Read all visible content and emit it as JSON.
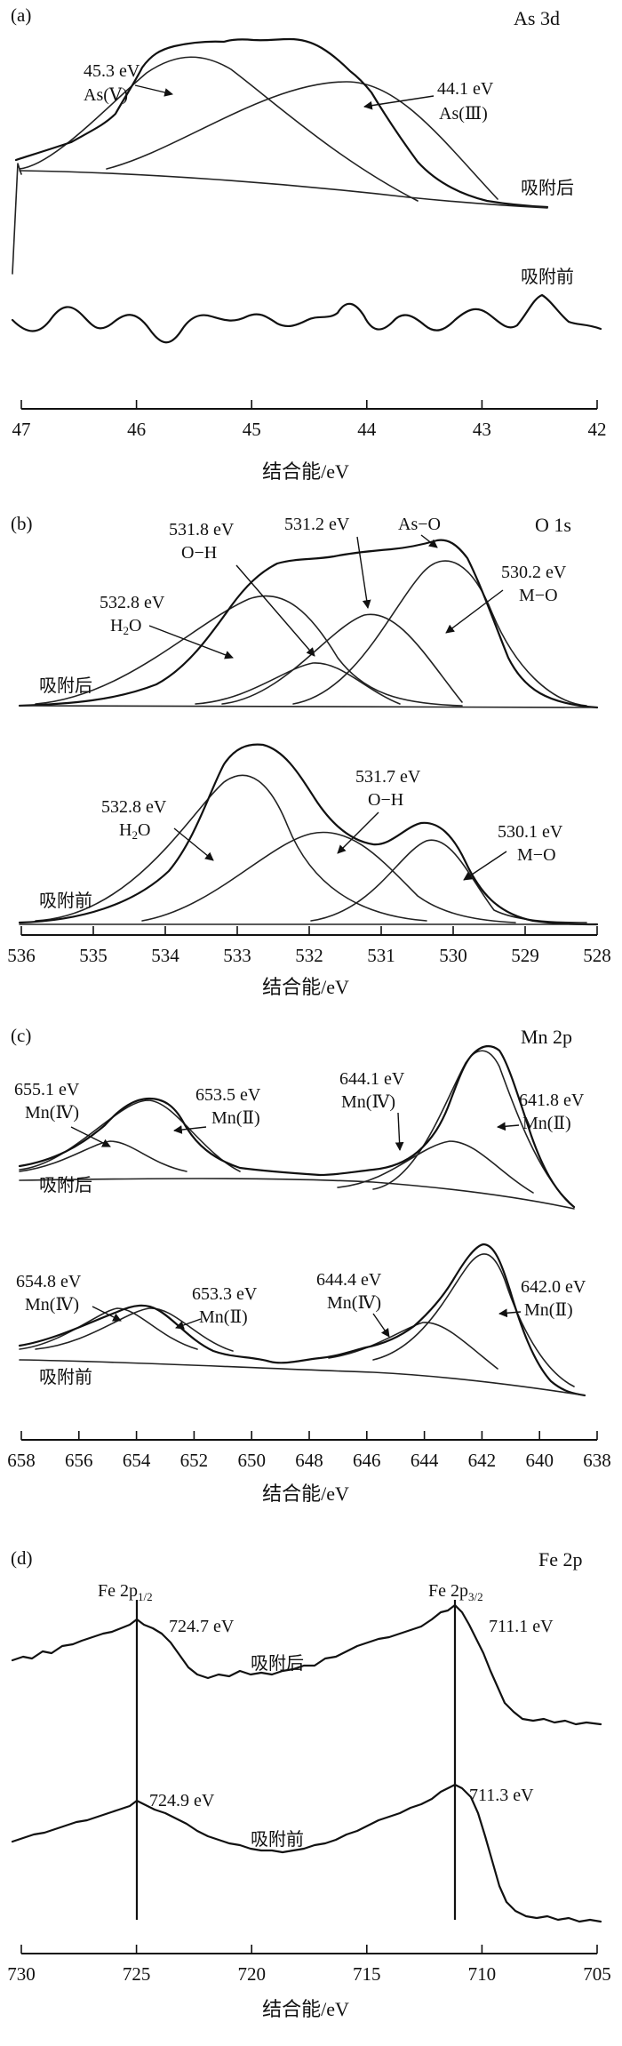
{
  "colors": {
    "ink": "#111111",
    "background": "#ffffff"
  },
  "chart_data": [
    {
      "type": "line",
      "panel": "(a)",
      "title": "As 3d",
      "xlabel": "结合能/eV",
      "ylabel": "",
      "xlim": [
        47,
        42
      ],
      "x_reversed": true,
      "ticks": [
        "47",
        "46",
        "45",
        "44",
        "43",
        "42"
      ],
      "curve_labels": [
        "吸附后",
        "吸附前"
      ],
      "peaks": [
        {
          "energy": "45.3 eV",
          "species": "As(Ⅴ)",
          "x": 45.3
        },
        {
          "energy": "44.1 eV",
          "species": "As(Ⅲ)",
          "x": 44.1
        }
      ],
      "series": [
        {
          "name": "吸附后",
          "x": [
            47,
            46.5,
            46,
            45.5,
            45,
            44.5,
            44,
            43.5,
            43,
            42.5,
            42
          ],
          "values": [
            0.35,
            0.55,
            0.78,
            0.94,
            1.0,
            0.97,
            0.9,
            0.7,
            0.38,
            0.14,
            0.08
          ]
        },
        {
          "name": "吸附前",
          "x": [
            47,
            46.5,
            46,
            45.5,
            45,
            44.5,
            44,
            43.5,
            43,
            42.5,
            42
          ],
          "values": [
            0.05,
            0.02,
            0.06,
            0.01,
            0.05,
            0.03,
            0.07,
            0.02,
            0.04,
            0.08,
            0.03
          ]
        }
      ]
    },
    {
      "type": "line",
      "panel": "(b)",
      "title": "O 1s",
      "xlabel": "结合能/eV",
      "ylabel": "",
      "xlim": [
        536,
        528
      ],
      "x_reversed": true,
      "ticks": [
        "536",
        "535",
        "534",
        "533",
        "532",
        "531",
        "530",
        "529",
        "528"
      ],
      "curve_labels": [
        "吸附后",
        "吸附前"
      ],
      "upper_peaks": [
        {
          "energy": "532.8 eV",
          "species": "H2O",
          "x": 532.8
        },
        {
          "energy": "531.8 eV",
          "species": "O−H",
          "x": 531.8
        },
        {
          "energy": "531.2 eV",
          "species": "As−O",
          "x": 531.2
        },
        {
          "energy": "530.2 eV",
          "species": "M−O",
          "x": 530.2
        }
      ],
      "lower_peaks": [
        {
          "energy": "532.8 eV",
          "species": "H2O",
          "x": 532.8
        },
        {
          "energy": "531.7 eV",
          "species": "O−H",
          "x": 531.7
        },
        {
          "energy": "530.1 eV",
          "species": "M−O",
          "x": 530.1
        }
      ]
    },
    {
      "type": "line",
      "panel": "(c)",
      "title": "Mn 2p",
      "xlabel": "结合能/eV",
      "ylabel": "",
      "xlim": [
        658,
        638
      ],
      "x_reversed": true,
      "ticks": [
        "658",
        "656",
        "654",
        "652",
        "650",
        "648",
        "646",
        "644",
        "642",
        "640",
        "638"
      ],
      "curve_labels": [
        "吸附后",
        "吸附前"
      ],
      "upper_peaks": [
        {
          "energy": "655.1 eV",
          "species": "Mn(Ⅳ)",
          "x": 655.1
        },
        {
          "energy": "653.5 eV",
          "species": "Mn(Ⅱ)",
          "x": 653.5
        },
        {
          "energy": "644.1 eV",
          "species": "Mn(Ⅳ)",
          "x": 644.1
        },
        {
          "energy": "641.8 eV",
          "species": "Mn(Ⅱ)",
          "x": 641.8
        }
      ],
      "lower_peaks": [
        {
          "energy": "654.8 eV",
          "species": "Mn(Ⅳ)",
          "x": 654.8
        },
        {
          "energy": "653.3 eV",
          "species": "Mn(Ⅱ)",
          "x": 653.3
        },
        {
          "energy": "644.4 eV",
          "species": "Mn(Ⅳ)",
          "x": 644.4
        },
        {
          "energy": "642.0 eV",
          "species": "Mn(Ⅱ)",
          "x": 642.0
        }
      ]
    },
    {
      "type": "line",
      "panel": "(d)",
      "title": "Fe 2p",
      "xlabel": "结合能/eV",
      "ylabel": "",
      "xlim": [
        730,
        705
      ],
      "x_reversed": true,
      "ticks": [
        "730",
        "725",
        "720",
        "715",
        "710",
        "705"
      ],
      "curve_labels": [
        "吸附后",
        "吸附前"
      ],
      "ref_lines": [
        {
          "label_main": "Fe 2p",
          "label_sub": "1/2",
          "x": 724.9
        },
        {
          "label_main": "Fe 2p",
          "label_sub": "3/2",
          "x": 711.2
        }
      ],
      "upper_peaks": [
        {
          "energy": "724.7 eV",
          "x": 724.7
        },
        {
          "energy": "711.1 eV",
          "x": 711.1
        }
      ],
      "lower_peaks": [
        {
          "energy": "724.9 eV",
          "x": 724.9
        },
        {
          "energy": "711.3 eV",
          "x": 711.3
        }
      ]
    }
  ]
}
